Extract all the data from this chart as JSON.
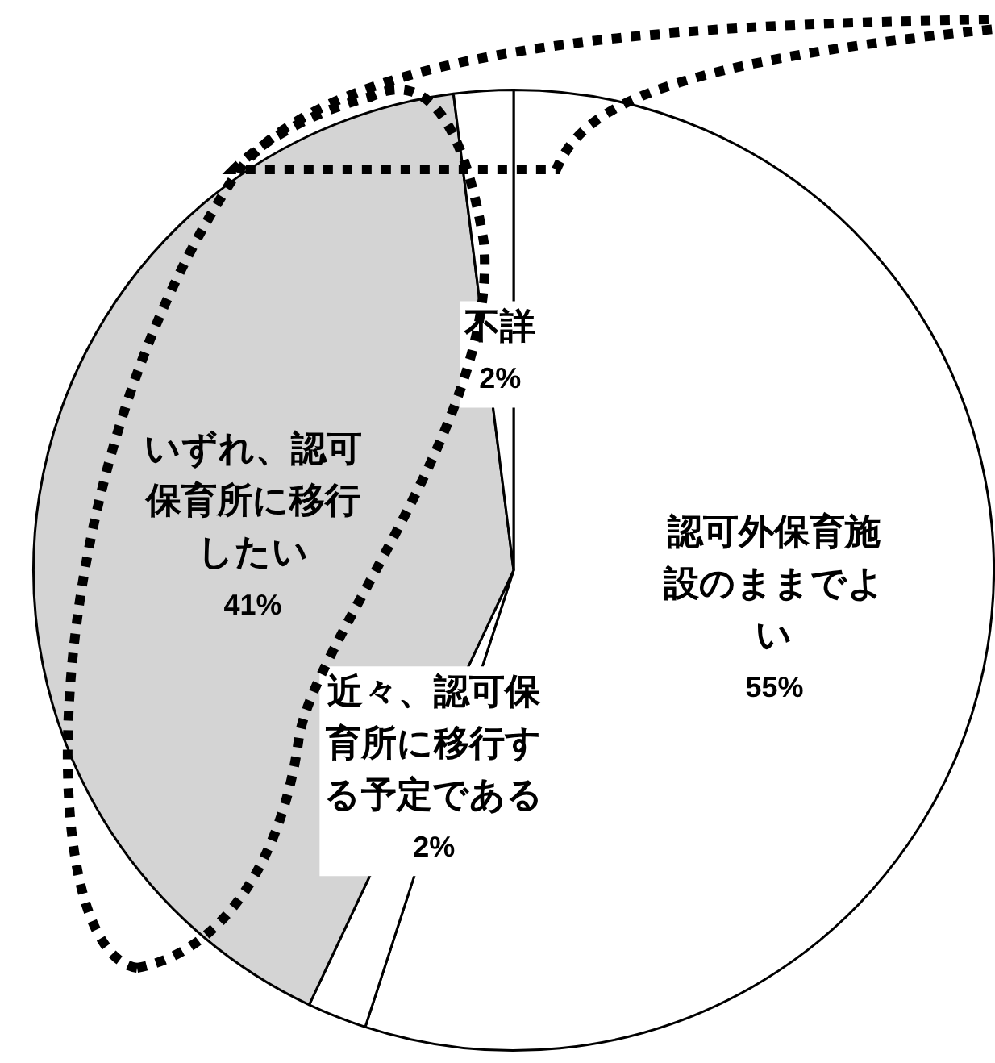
{
  "chart_data": {
    "type": "pie",
    "categories": [
      "認可外保育施設のままでよい",
      "近々、認可保育所に移行する予定である",
      "いずれ、認可保育所に移行したい",
      "不詳"
    ],
    "values": [
      55,
      2,
      41,
      2
    ],
    "value_labels": [
      "55%",
      "2%",
      "41%",
      "2%"
    ],
    "colors": [
      "#ffffff",
      "#ffffff",
      "#d4d4d4",
      "#ffffff"
    ],
    "legend": false
  }
}
